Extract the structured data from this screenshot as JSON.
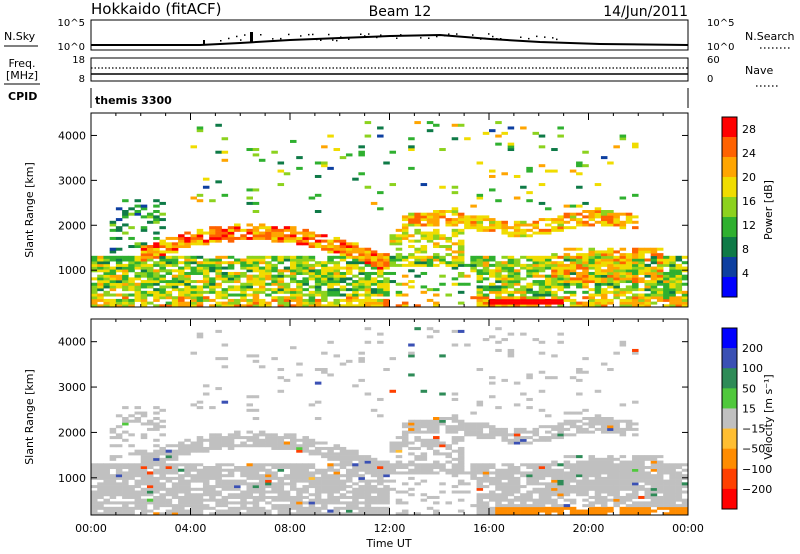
{
  "header": {
    "title": "Hokkaido (fitACF)",
    "beam": "Beam 12",
    "date": "14/Jun/2011"
  },
  "noise_panel": {
    "left_label": "N.Sky",
    "right_label": "N.Search",
    "left_ticks": [
      "10^5",
      "10^0"
    ],
    "right_ticks": [
      "10^5",
      "10^0"
    ]
  },
  "freq_panel": {
    "left_label_line1": "Freq.",
    "left_label_line2": "[MHz]",
    "left_ticks": [
      "18",
      "8"
    ],
    "right_label": "Nave",
    "right_ticks": [
      "60",
      "0"
    ]
  },
  "cpid_panel": {
    "label": "CPID",
    "program": "themis 3300"
  },
  "x_axis": {
    "label": "Time UT",
    "ticks": [
      "00:00",
      "04:00",
      "08:00",
      "12:00",
      "16:00",
      "20:00",
      "00:00"
    ]
  },
  "power_panel": {
    "ylabel": "Slant Range [km]",
    "yticks": [
      "1000",
      "2000",
      "3000",
      "4000"
    ],
    "colorbar_label": "Power [dB]",
    "colorbar_ticks": [
      "4",
      "8",
      "12",
      "16",
      "20",
      "24",
      "28"
    ]
  },
  "velocity_panel": {
    "ylabel": "Slant Range [km]",
    "yticks": [
      "1000",
      "2000",
      "3000",
      "4000"
    ],
    "colorbar_label": "Velocity [m s⁻¹]",
    "colorbar_ticks": [
      "200",
      "100",
      "50",
      "15",
      "−15",
      "−50",
      "−100",
      "−200"
    ]
  },
  "chart_data": [
    {
      "type": "heatmap",
      "title": "Hokkaido (fitACF) Beam 12 14/Jun/2011",
      "quantity": "Power",
      "units": "dB",
      "xlabel": "Time UT",
      "ylabel": "Slant Range [km]",
      "xlim_hours": [
        0,
        24
      ],
      "ylim_km": [
        180,
        4500
      ],
      "colorbar": {
        "range": [
          0,
          30
        ],
        "ticks": [
          4,
          8,
          12,
          16,
          20,
          24,
          28
        ],
        "colors": [
          "#0000ff",
          "#0d3fa0",
          "#0e7a47",
          "#2fb02f",
          "#8cd21e",
          "#f0dc00",
          "#ffa500",
          "#ff6200",
          "#ff0000"
        ]
      },
      "features": [
        {
          "desc": "near-range band",
          "range_km": [
            200,
            1300
          ],
          "time_h": [
            0,
            24
          ],
          "typical_power_db": 16
        },
        {
          "desc": "arc rising from 1500 km",
          "time_h": [
            2,
            11
          ],
          "range_km": [
            1200,
            1800
          ],
          "typical_power_db": 22
        },
        {
          "desc": "band near 2100 km",
          "time_h": [
            12.5,
            22
          ],
          "range_km": [
            1900,
            2300
          ],
          "typical_power_db": 22
        },
        {
          "desc": "strong echoes near 300 km",
          "time_h": [
            16,
            19
          ],
          "range_km": [
            250,
            350
          ],
          "typical_power_db": 28
        }
      ]
    },
    {
      "type": "heatmap",
      "quantity": "Velocity",
      "units": "m s^-1",
      "xlabel": "Time UT",
      "ylabel": "Slant Range [km]",
      "xlim_hours": [
        0,
        24
      ],
      "ylim_km": [
        180,
        4500
      ],
      "colorbar": {
        "range": [
          -250,
          250
        ],
        "ticks": [
          200,
          100,
          50,
          15,
          -15,
          -50,
          -100,
          -200
        ],
        "colors": [
          "#0000ff",
          "#3a50b4",
          "#2e8b57",
          "#50c83c",
          "#c0c0c0",
          "#ffbe32",
          "#ff8c00",
          "#ff4000",
          "#ff0000"
        ]
      },
      "features": [
        {
          "desc": "mostly low velocity (grey)",
          "range_km": [
            200,
            2500
          ],
          "time_h": [
            0,
            24
          ],
          "typical_velocity": 0
        },
        {
          "desc": "positive velocity patch",
          "time_h": [
            12.5,
            14.5
          ],
          "range_km": [
            2800,
            3700
          ],
          "typical_velocity": 60
        }
      ]
    },
    {
      "type": "line",
      "quantity": "Sky noise",
      "xlim_hours": [
        0,
        24
      ],
      "ylog": true,
      "ylim": [
        1,
        100000
      ]
    }
  ]
}
